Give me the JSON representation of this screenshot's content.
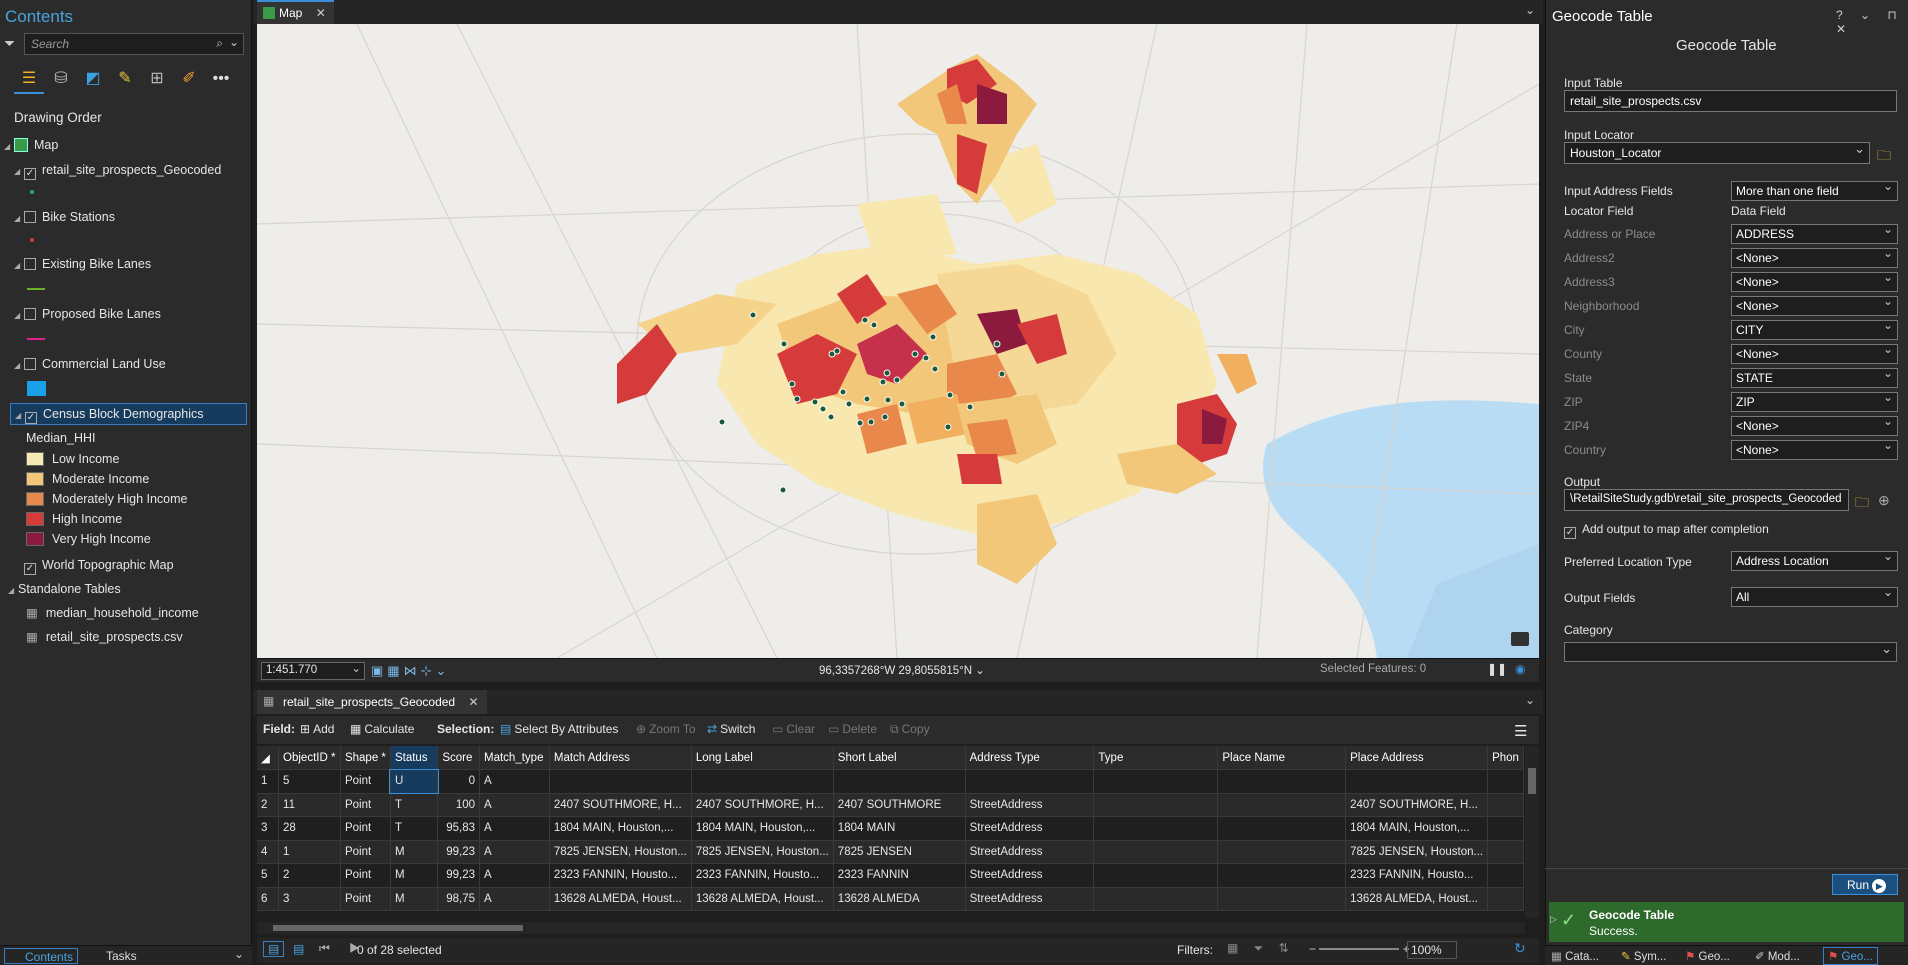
{
  "contents": {
    "title": "Contents",
    "search_placeholder": "Search",
    "drawing_order": "Drawing Order",
    "map_label": "Map",
    "layers": [
      {
        "name": "retail_site_prospects_Geocoded",
        "checked": true,
        "symbol": "point-teal"
      },
      {
        "name": "Bike Stations",
        "checked": false,
        "symbol": "point-red"
      },
      {
        "name": "Existing Bike Lanes",
        "checked": false,
        "symbol": "line-green"
      },
      {
        "name": "Proposed Bike Lanes",
        "checked": false,
        "symbol": "line-magenta"
      },
      {
        "name": "Commercial Land Use",
        "checked": false,
        "symbol": "fill-blue"
      },
      {
        "name": "Census Block Demographics",
        "checked": true,
        "symbol": "classes"
      }
    ],
    "field_name": "Median_HHI",
    "legend": [
      {
        "label": "Low Income",
        "color": "#f5e9b5"
      },
      {
        "label": "Moderate Income",
        "color": "#f3c77a"
      },
      {
        "label": "Moderately High Income",
        "color": "#e9884b"
      },
      {
        "label": "High Income",
        "color": "#d63b3b"
      },
      {
        "label": "Very High Income",
        "color": "#8c1a3e"
      }
    ],
    "basemap": "World Topographic Map",
    "standalone_header": "Standalone Tables",
    "tables": [
      "median_household_income",
      "retail_site_prospects.csv"
    ],
    "bottom_tabs": [
      "Contents",
      "Tasks"
    ]
  },
  "map": {
    "tab": "Map",
    "scale": "1:451.770",
    "coords": "96,3357268°W 29,8055815°N",
    "selected_features": "Selected Features: 0"
  },
  "table": {
    "tab": "retail_site_prospects_Geocoded",
    "field_label": "Field:",
    "add": "Add",
    "calculate": "Calculate",
    "selection_label": "Selection:",
    "select_by_attributes": "Select By Attributes",
    "zoom_to": "Zoom To",
    "switch": "Switch",
    "clear": "Clear",
    "delete": "Delete",
    "copy": "Copy",
    "columns": [
      "ObjectID *",
      "Shape *",
      "Status",
      "Score",
      "Match_type",
      "Match Address",
      "Long Label",
      "Short Label",
      "Address Type",
      "Type",
      "Place Name",
      "Place Address",
      "Phon"
    ],
    "rows": [
      [
        "1",
        "5",
        "Point",
        "U",
        "0",
        "A",
        "",
        "",
        "",
        "",
        "",
        "",
        "",
        ""
      ],
      [
        "2",
        "11",
        "Point",
        "T",
        "100",
        "A",
        "2407 SOUTHMORE, H...",
        "2407 SOUTHMORE, H...",
        "2407 SOUTHMORE",
        "StreetAddress",
        "",
        "",
        "2407 SOUTHMORE, H...",
        ""
      ],
      [
        "3",
        "28",
        "Point",
        "T",
        "95,83",
        "A",
        "1804 MAIN, Houston,...",
        "1804 MAIN, Houston,...",
        "1804 MAIN",
        "StreetAddress",
        "",
        "",
        "1804 MAIN, Houston,...",
        ""
      ],
      [
        "4",
        "1",
        "Point",
        "M",
        "99,23",
        "A",
        "7825 JENSEN, Houston...",
        "7825 JENSEN, Houston...",
        "7825 JENSEN",
        "StreetAddress",
        "",
        "",
        "7825 JENSEN, Houston...",
        ""
      ],
      [
        "5",
        "2",
        "Point",
        "M",
        "99,23",
        "A",
        "2323 FANNIN, Housto...",
        "2323 FANNIN, Housto...",
        "2323 FANNIN",
        "StreetAddress",
        "",
        "",
        "2323 FANNIN, Housto...",
        ""
      ],
      [
        "6",
        "3",
        "Point",
        "M",
        "98,75",
        "A",
        "13628 ALMEDA, Houst...",
        "13628 ALMEDA, Houst...",
        "13628 ALMEDA",
        "StreetAddress",
        "",
        "",
        "13628 ALMEDA, Houst...",
        ""
      ]
    ],
    "selected_count": "0 of 28 selected",
    "filters": "Filters:",
    "zoom": "100%"
  },
  "gp": {
    "pane_title": "Geocode Table",
    "tool_title": "Geocode Table",
    "input_table_label": "Input Table",
    "input_table": "retail_site_prospects.csv",
    "input_locator_label": "Input Locator",
    "input_locator": "Houston_Locator",
    "address_fields_label": "Input Address Fields",
    "address_fields": "More than one field",
    "locator_field_hdr": "Locator Field",
    "data_field_hdr": "Data Field",
    "mappings": [
      {
        "field": "Address or Place",
        "value": "ADDRESS"
      },
      {
        "field": "Address2",
        "value": "<None>"
      },
      {
        "field": "Address3",
        "value": "<None>"
      },
      {
        "field": "Neighborhood",
        "value": "<None>"
      },
      {
        "field": "City",
        "value": "CITY"
      },
      {
        "field": "County",
        "value": "<None>"
      },
      {
        "field": "State",
        "value": "STATE"
      },
      {
        "field": "ZIP",
        "value": "ZIP"
      },
      {
        "field": "ZIP4",
        "value": "<None>"
      },
      {
        "field": "Country",
        "value": "<None>"
      }
    ],
    "output_label": "Output",
    "output": "\\RetailSiteStudy.gdb\\retail_site_prospects_Geocoded",
    "add_output_label": "Add output to map after completion",
    "pref_loc_label": "Preferred Location Type",
    "pref_loc": "Address Location",
    "output_fields_label": "Output Fields",
    "output_fields": "All",
    "category_label": "Category",
    "run": "Run",
    "result_title": "Geocode Table",
    "result_status": "Success.",
    "bottom_tabs": [
      "Cata...",
      "Sym...",
      "Geo...",
      "Mod...",
      "Geo..."
    ]
  }
}
